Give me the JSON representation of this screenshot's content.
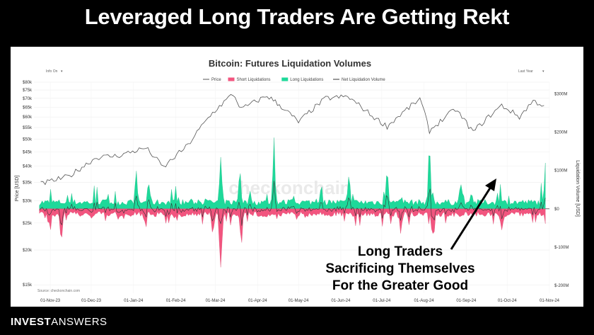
{
  "headline": "Leveraged Long Traders Are Getting Rekt",
  "brand": {
    "bold": "INVEST",
    "light": "ANSWERS"
  },
  "colors": {
    "price": "#555555",
    "short": "#f2557f",
    "long": "#1ed99a",
    "net": "#333333"
  },
  "chart_data": {
    "type": "area",
    "title": "Bitcoin: Futures Liquidation Volumes",
    "left_control": "Info On",
    "right_control": "Last Year",
    "watermark": "checkonchain",
    "source": "Source: checkonchain.com",
    "legend": [
      "Price",
      "Short Liquidations",
      "Long Liquidations",
      "Net Liquidation Volume"
    ],
    "legend_placement": "top-center",
    "ylabel_left": "Price [USD]",
    "ylabel_right": "Liquidation Volume [USD]",
    "left_axis_scale": "log",
    "left_ticks": [
      "$80k",
      "$75k",
      "$70k",
      "$65k",
      "$60k",
      "$55k",
      "$50k",
      "$45k",
      "$40k",
      "$35k",
      "$30k",
      "$25k",
      "$20k",
      "$15k"
    ],
    "right_ticks": [
      "$300M",
      "$200M",
      "$100M",
      "$0",
      "$-100M",
      "$-200M"
    ],
    "x_ticks": [
      "01-Nov-23",
      "01-Dec-23",
      "01-Jan-24",
      "01-Feb-24",
      "01-Mar-24",
      "01-Apr-24",
      "01-May-24",
      "01-Jun-24",
      "01-Jul-24",
      "01-Aug-24",
      "01-Sep-24",
      "01-Oct-24",
      "01-Nov-24"
    ],
    "price_series": [
      [
        "2023-10-25",
        34500
      ],
      [
        "2023-11-15",
        36800
      ],
      [
        "2023-12-05",
        43000
      ],
      [
        "2023-12-20",
        43500
      ],
      [
        "2024-01-10",
        46500
      ],
      [
        "2024-01-23",
        39500
      ],
      [
        "2024-02-10",
        47500
      ],
      [
        "2024-02-28",
        62000
      ],
      [
        "2024-03-14",
        72500
      ],
      [
        "2024-03-20",
        64000
      ],
      [
        "2024-04-08",
        71500
      ],
      [
        "2024-04-20",
        64500
      ],
      [
        "2024-05-01",
        57500
      ],
      [
        "2024-05-21",
        70000
      ],
      [
        "2024-06-06",
        71000
      ],
      [
        "2024-06-24",
        60500
      ],
      [
        "2024-07-05",
        55500
      ],
      [
        "2024-07-29",
        69500
      ],
      [
        "2024-08-05",
        53500
      ],
      [
        "2024-08-24",
        64000
      ],
      [
        "2024-09-06",
        53000
      ],
      [
        "2024-09-27",
        66000
      ],
      [
        "2024-10-10",
        60000
      ],
      [
        "2024-10-20",
        68500
      ],
      [
        "2024-10-28",
        66000
      ]
    ],
    "long_liquidation_peaks_usd_m": [
      [
        "2024-01-03",
        75
      ],
      [
        "2024-01-12",
        55
      ],
      [
        "2024-03-05",
        110
      ],
      [
        "2024-03-19",
        85
      ],
      [
        "2024-04-13",
        132
      ],
      [
        "2024-06-07",
        65
      ],
      [
        "2024-07-05",
        90
      ],
      [
        "2024-08-05",
        145
      ],
      [
        "2024-08-28",
        55
      ],
      [
        "2024-10-29",
        62
      ]
    ],
    "short_liquidation_troughs_usd_m": [
      [
        "2023-11-01",
        -35
      ],
      [
        "2023-11-09",
        -70
      ],
      [
        "2024-02-28",
        -55
      ],
      [
        "2024-03-05",
        -140
      ],
      [
        "2024-03-20",
        -60
      ],
      [
        "2024-07-15",
        -50
      ],
      [
        "2024-08-08",
        -55
      ],
      [
        "2024-09-27",
        -45
      ]
    ],
    "annotation": [
      "Long Traders",
      "Sacrificing Themselves",
      "For the Greater Good"
    ]
  }
}
